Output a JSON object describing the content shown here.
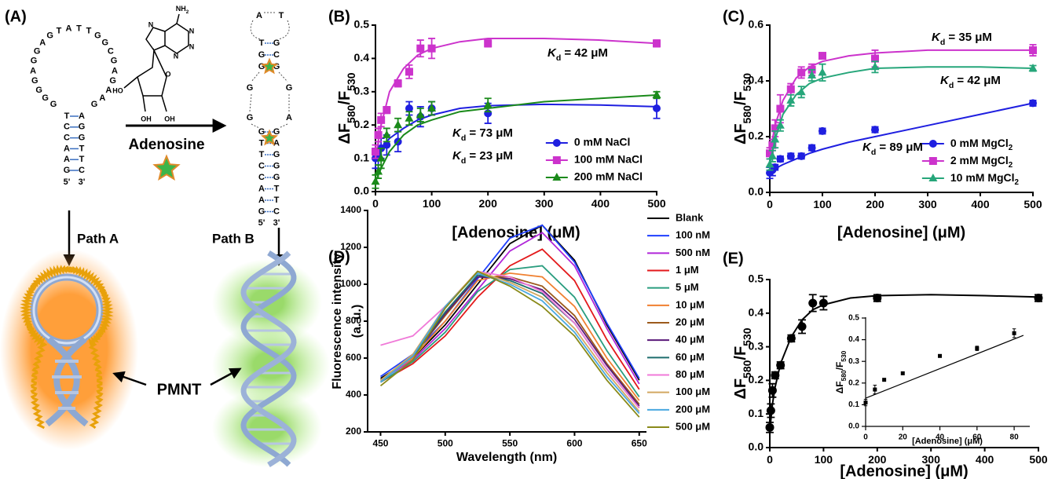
{
  "diagram": {
    "panel_label": "(A)",
    "hairpin": {
      "loop": [
        "G",
        "G",
        "G",
        "G",
        "A",
        "G",
        "G",
        "A",
        "G",
        "T",
        "A",
        "T",
        "T",
        "G",
        "G",
        "C",
        "G",
        "A",
        "G",
        "A",
        "A",
        "G"
      ],
      "stem": [
        [
          "T",
          "A"
        ],
        [
          "C",
          "G"
        ],
        [
          "C",
          "G"
        ],
        [
          "A",
          "T"
        ],
        [
          "A",
          "T"
        ],
        [
          "G",
          "C"
        ]
      ],
      "ends": [
        "5'",
        "3'"
      ]
    },
    "chemical": {
      "labels": [
        [
          "NH",
          "2"
        ],
        "N",
        "N",
        "N",
        "N",
        "O",
        "HO",
        "OH",
        "OH"
      ]
    },
    "reagent": "Adenosine",
    "folded": {
      "top_loop": [
        "A",
        "T"
      ],
      "upper_stem": [
        [
          "T",
          "G"
        ],
        [
          "G",
          "C"
        ],
        [
          "G",
          "G"
        ]
      ],
      "internal_left": [
        "G",
        "G"
      ],
      "internal_right": [
        "G",
        "A"
      ],
      "lower_stem": [
        [
          "G",
          "G"
        ],
        [
          "T",
          "A"
        ],
        [
          "T",
          "G"
        ],
        [
          "C",
          "G"
        ],
        [
          "C",
          "G"
        ],
        [
          "A",
          "T"
        ],
        [
          "A",
          "T"
        ],
        [
          "G",
          "C"
        ]
      ],
      "ends": [
        "5'",
        "3'"
      ]
    },
    "paths": [
      "Path A",
      "Path B"
    ],
    "polymer": "PMNT"
  },
  "chart_data": [
    {
      "type": "scatter",
      "label": "(B)",
      "xlabel": "[Adenosine] (μM)",
      "ylabel": [
        "ΔF",
        "580",
        "/F",
        "530"
      ],
      "xlim": [
        0,
        500
      ],
      "ylim": [
        0,
        0.5
      ],
      "xticks": [
        0,
        100,
        200,
        300,
        400,
        500
      ],
      "yticks": [
        {
          "value": 0,
          "label": "0.0"
        },
        0.1,
        0.2,
        0.3,
        0.4,
        0.5
      ],
      "legend": "lower right",
      "series": [
        {
          "name": "0 mM NaCl",
          "color": "#1f1fe0",
          "marker": "circle",
          "x": [
            0,
            5,
            10,
            20,
            40,
            60,
            80,
            100,
            200,
            500
          ],
          "values": [
            0.1,
            0.11,
            0.13,
            0.14,
            0.15,
            0.25,
            0.225,
            0.25,
            0.235,
            0.25
          ],
          "errors": [
            0.03,
            0.04,
            0.03,
            0.03,
            0.03,
            0.02,
            0.03,
            0.02,
            0.03,
            0.03
          ],
          "fit": {
            "x": [
              0,
              10,
              25,
              50,
              75,
              100,
              150,
              200,
              300,
              400,
              500
            ],
            "values": [
              0.1,
              0.13,
              0.16,
              0.19,
              0.215,
              0.23,
              0.25,
              0.258,
              0.262,
              0.26,
              0.255
            ]
          }
        },
        {
          "name": "100 mM NaCl",
          "color": "#cc33cc",
          "marker": "square",
          "x": [
            0,
            5,
            10,
            20,
            40,
            60,
            80,
            100,
            200,
            500
          ],
          "values": [
            0.12,
            0.17,
            0.215,
            0.245,
            0.325,
            0.36,
            0.43,
            0.43,
            0.445,
            0.445
          ],
          "errors": [
            0.02,
            0.02,
            0.02,
            0.01,
            0.01,
            0.02,
            0.025,
            0.03,
            0.01,
            0.01
          ],
          "fit": {
            "x": [
              0,
              10,
              25,
              50,
              75,
              100,
              150,
              200,
              300,
              400,
              500
            ],
            "values": [
              0.1,
              0.2,
              0.3,
              0.37,
              0.41,
              0.43,
              0.45,
              0.46,
              0.46,
              0.455,
              0.445
            ]
          }
        },
        {
          "name": "200 mM NaCl",
          "color": "#1a8a1a",
          "marker": "triangle",
          "x": [
            0,
            5,
            10,
            20,
            40,
            60,
            80,
            100,
            200,
            500
          ],
          "values": [
            0.03,
            0.06,
            0.1,
            0.17,
            0.2,
            0.22,
            0.23,
            0.25,
            0.26,
            0.29
          ],
          "errors": [
            0.02,
            0.02,
            0.03,
            0.02,
            0.02,
            0.02,
            0.02,
            0.02,
            0.02,
            0.01
          ],
          "fit": {
            "x": [
              0,
              10,
              25,
              50,
              75,
              100,
              150,
              200,
              300,
              400,
              500
            ],
            "values": [
              0.03,
              0.07,
              0.12,
              0.17,
              0.2,
              0.215,
              0.24,
              0.25,
              0.27,
              0.28,
              0.29
            ]
          }
        }
      ],
      "annotations": [
        {
          "text": [
            "K",
            "d",
            " = 42 μM"
          ],
          "color": "#cc33cc"
        },
        {
          "text": [
            "K",
            "d",
            " = 73 μM"
          ],
          "color": "#1f1fe0"
        },
        {
          "text": [
            "K",
            "d",
            " = 23 μM"
          ],
          "color": "#1a8a1a"
        }
      ]
    },
    {
      "type": "scatter",
      "label": "(C)",
      "xlabel": "[Adenosine] (μM)",
      "ylabel": [
        "ΔF",
        "580",
        "/F",
        "530"
      ],
      "xlim": [
        0,
        500
      ],
      "ylim": [
        0,
        0.6
      ],
      "xticks": [
        0,
        100,
        200,
        300,
        400,
        500
      ],
      "yticks": [
        {
          "value": 0,
          "label": "0.0"
        },
        0.2,
        0.4,
        0.6
      ],
      "legend": "lower right",
      "series": [
        {
          "name": [
            "0 mM MgCl",
            "2"
          ],
          "color": "#1f1fe0",
          "marker": "circle",
          "x": [
            0,
            5,
            10,
            20,
            40,
            60,
            80,
            100,
            200,
            500
          ],
          "values": [
            0.07,
            0.08,
            0.09,
            0.12,
            0.13,
            0.13,
            0.16,
            0.22,
            0.225,
            0.32
          ],
          "errors": [
            0.02,
            0.02,
            0.01,
            0.01,
            0.01,
            0.01,
            0.01,
            0.01,
            0.01,
            0.01
          ],
          "fit": {
            "x": [
              0,
              10,
              25,
              50,
              75,
              100,
              150,
              200,
              300,
              400,
              500
            ],
            "values": [
              0.07,
              0.085,
              0.1,
              0.12,
              0.14,
              0.155,
              0.18,
              0.2,
              0.24,
              0.28,
              0.32
            ]
          }
        },
        {
          "name": [
            "2 mM MgCl",
            "2"
          ],
          "color": "#cc33cc",
          "marker": "square",
          "x": [
            0,
            5,
            10,
            20,
            40,
            60,
            80,
            100,
            200,
            500
          ],
          "values": [
            0.14,
            0.17,
            0.23,
            0.3,
            0.37,
            0.43,
            0.44,
            0.49,
            0.48,
            0.51
          ],
          "errors": [
            0.02,
            0.02,
            0.03,
            0.05,
            0.02,
            0.02,
            0.02,
            0.01,
            0.03,
            0.02
          ],
          "fit": {
            "x": [
              0,
              10,
              25,
              50,
              75,
              100,
              150,
              200,
              300,
              400,
              500
            ],
            "values": [
              0.14,
              0.24,
              0.33,
              0.41,
              0.45,
              0.47,
              0.49,
              0.5,
              0.51,
              0.51,
              0.51
            ]
          }
        },
        {
          "name": [
            "10 mM MgCl",
            "2"
          ],
          "color": "#26a67a",
          "marker": "triangle",
          "x": [
            0,
            5,
            10,
            20,
            40,
            60,
            80,
            100,
            200,
            500
          ],
          "values": [
            0.1,
            0.13,
            0.19,
            0.24,
            0.33,
            0.36,
            0.42,
            0.43,
            0.45,
            0.445
          ],
          "errors": [
            0.02,
            0.02,
            0.03,
            0.02,
            0.02,
            0.02,
            0.02,
            0.03,
            0.02,
            0.01
          ],
          "fit": {
            "x": [
              0,
              10,
              25,
              50,
              75,
              100,
              150,
              200,
              300,
              400,
              500
            ],
            "values": [
              0.1,
              0.19,
              0.28,
              0.35,
              0.39,
              0.41,
              0.43,
              0.445,
              0.45,
              0.45,
              0.445
            ]
          }
        }
      ],
      "annotations": [
        {
          "text": [
            "K",
            "d",
            " = 35 μM"
          ],
          "color": "#cc33cc"
        },
        {
          "text": [
            "K",
            "d",
            " = 42 μM"
          ],
          "color": "#1a8a1a"
        },
        {
          "text": [
            "K",
            "d",
            " = 89 μM"
          ],
          "color": "#1f1fe0"
        }
      ]
    },
    {
      "type": "line",
      "label": "(D)",
      "xlabel": "Wavelength (nm)",
      "ylabel_lines": [
        "Fluorescence intensity",
        "(a. u.)"
      ],
      "xlim": [
        440,
        655
      ],
      "ylim": [
        200,
        1400
      ],
      "xticks": [
        450,
        500,
        550,
        600,
        650
      ],
      "yticks": [
        200,
        400,
        600,
        800,
        1000,
        1200,
        1400
      ],
      "legend": "right",
      "x": [
        450,
        475,
        500,
        525,
        550,
        575,
        600,
        625,
        650
      ],
      "series": [
        {
          "name": "Blank",
          "color": "#000000",
          "values": [
            490,
            600,
            780,
            1000,
            1220,
            1320,
            1130,
            780,
            480
          ]
        },
        {
          "name": "100 nM",
          "color": "#1f3fff",
          "values": [
            500,
            620,
            800,
            1030,
            1250,
            1320,
            1120,
            790,
            490
          ]
        },
        {
          "name": "500 nM",
          "color": "#b026d9",
          "values": [
            480,
            590,
            760,
            970,
            1180,
            1280,
            1100,
            760,
            460
          ]
        },
        {
          "name": "1 μM",
          "color": "#e31a1c",
          "values": [
            470,
            570,
            720,
            930,
            1100,
            1190,
            1020,
            700,
            430
          ]
        },
        {
          "name": "5 μM",
          "color": "#2a9d7f",
          "values": [
            470,
            580,
            740,
            960,
            1080,
            1100,
            930,
            640,
            390
          ]
        },
        {
          "name": "10 μM",
          "color": "#f08030",
          "values": [
            480,
            600,
            800,
            1020,
            1060,
            1040,
            880,
            600,
            370
          ]
        },
        {
          "name": "20 μM",
          "color": "#9c5a1c",
          "values": [
            480,
            610,
            830,
            1040,
            1040,
            990,
            830,
            570,
            350
          ]
        },
        {
          "name": "40 μM",
          "color": "#5a1a7a",
          "values": [
            480,
            610,
            840,
            1040,
            1030,
            970,
            810,
            560,
            340
          ]
        },
        {
          "name": "60 μM",
          "color": "#1e6e6e",
          "values": [
            480,
            610,
            850,
            1050,
            1020,
            950,
            790,
            540,
            330
          ]
        },
        {
          "name": "80 μM",
          "color": "#f07ad8",
          "values": [
            670,
            720,
            880,
            1070,
            1040,
            960,
            790,
            540,
            330
          ]
        },
        {
          "name": "100 μM",
          "color": "#d2a862",
          "values": [
            480,
            620,
            880,
            1070,
            1010,
            930,
            760,
            520,
            310
          ]
        },
        {
          "name": "200 μM",
          "color": "#4aa8e0",
          "values": [
            470,
            610,
            880,
            1060,
            1000,
            910,
            740,
            500,
            300
          ]
        },
        {
          "name": "500 μM",
          "color": "#8a8a1a",
          "values": [
            450,
            590,
            870,
            1070,
            990,
            880,
            720,
            480,
            280
          ]
        }
      ]
    },
    {
      "type": "scatter",
      "label": "(E)",
      "xlabel": "[Adenosine] (μM)",
      "ylabel": [
        "ΔF",
        "580",
        "/F",
        "530"
      ],
      "xlim": [
        0,
        500
      ],
      "ylim": [
        0,
        0.5
      ],
      "xticks": [
        0,
        100,
        200,
        300,
        400,
        500
      ],
      "yticks": [
        {
          "value": 0,
          "label": "0.0"
        },
        0.1,
        0.2,
        0.3,
        0.4,
        0.5
      ],
      "series": [
        {
          "color": "#000000",
          "marker": "circle",
          "x": [
            0,
            2,
            5,
            10,
            20,
            40,
            60,
            80,
            100,
            200,
            500
          ],
          "values": [
            0.06,
            0.11,
            0.17,
            0.215,
            0.245,
            0.325,
            0.36,
            0.43,
            0.43,
            0.445,
            0.445
          ],
          "errors": [
            0.015,
            0.02,
            0.02,
            0.01,
            0.01,
            0.01,
            0.02,
            0.025,
            0.02,
            0.01,
            0.01
          ],
          "fit": {
            "x": [
              0,
              5,
              10,
              20,
              40,
              60,
              80,
              100,
              150,
              200,
              300,
              400,
              500
            ],
            "values": [
              0.05,
              0.13,
              0.18,
              0.25,
              0.33,
              0.38,
              0.41,
              0.425,
              0.445,
              0.452,
              0.455,
              0.452,
              0.448
            ]
          }
        }
      ]
    },
    {
      "type": "scatter",
      "xlabel": "[Adenosine] (μM)",
      "ylabel": [
        "ΔF",
        "580",
        "/F",
        "530"
      ],
      "xlim": [
        0,
        88
      ],
      "ylim": [
        0,
        0.5
      ],
      "xticks": [
        0,
        20,
        40,
        60,
        80
      ],
      "yticks": [
        {
          "value": 0,
          "label": "0.0"
        },
        0.1,
        0.2,
        0.3,
        0.4,
        0.5
      ],
      "series": [
        {
          "color": "#000000",
          "marker": "square",
          "x": [
            0,
            5,
            10,
            20,
            40,
            60,
            80
          ],
          "values": [
            0.11,
            0.17,
            0.215,
            0.245,
            0.325,
            0.36,
            0.43
          ],
          "errors": [
            0.015,
            0.02,
            0.005,
            0.005,
            0.005,
            0.01,
            0.02
          ],
          "fit": {
            "x": [
              0,
              85
            ],
            "values": [
              0.13,
              0.42
            ]
          }
        }
      ]
    }
  ]
}
